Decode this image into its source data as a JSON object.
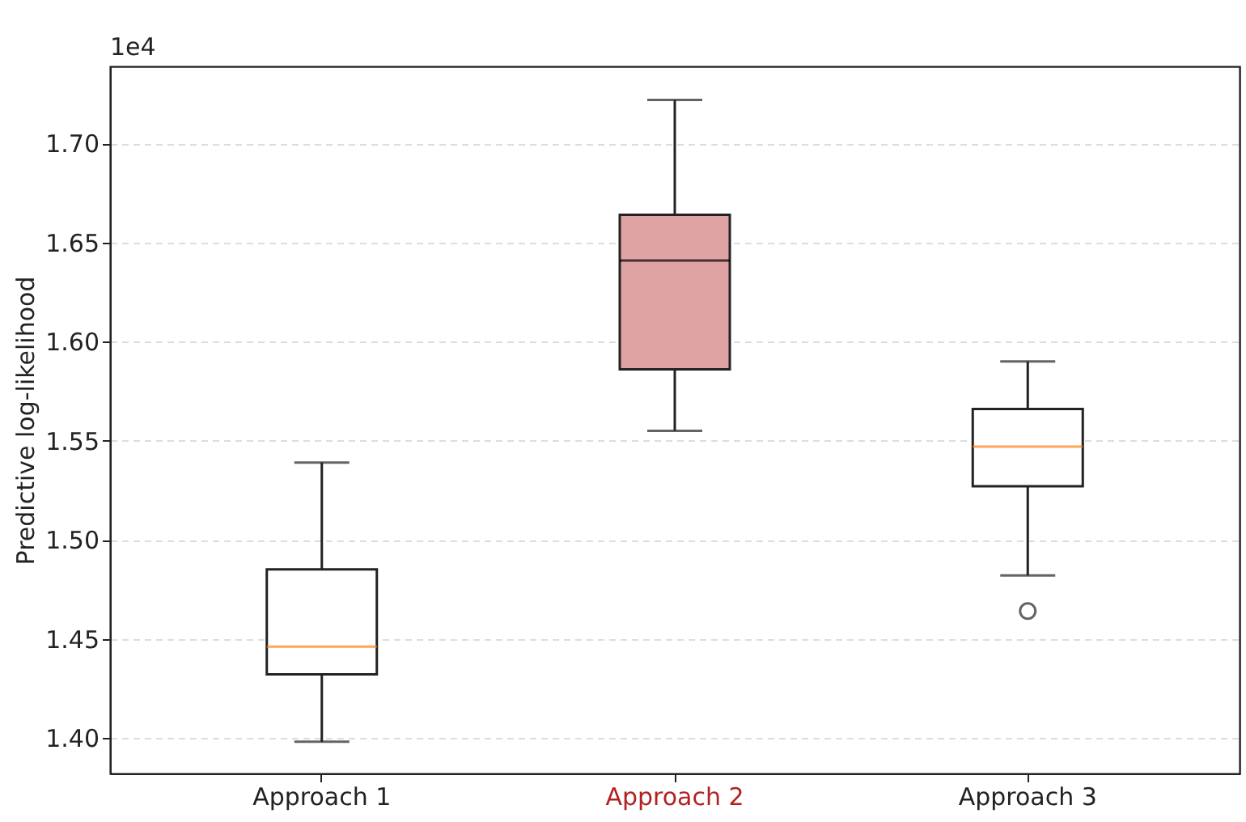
{
  "chart_data": {
    "type": "box",
    "ylabel": "Predictive log-likelihood",
    "annotations": [
      "1e4"
    ],
    "categories": [
      "Approach 1",
      "Approach 2",
      "Approach 3"
    ],
    "colors": [
      "#ffffff",
      "#e0a3a3",
      "#ffffff"
    ],
    "boxes": [
      {
        "low": 1.398,
        "q1": 1.432,
        "median": 1.446,
        "q3": 1.485,
        "high": 1.539
      },
      {
        "low": 1.555,
        "q1": 1.586,
        "median": 1.641,
        "q3": 1.664,
        "high": 1.722
      },
      {
        "low": 1.482,
        "q1": 1.527,
        "median": 1.547,
        "q3": 1.566,
        "high": 1.59,
        "outliers": [
          1.464
        ]
      }
    ],
    "ylim": [
      1.382,
      1.739
    ],
    "yticks": [
      {
        "value": 1.4,
        "label": "1.40"
      },
      1.45,
      {
        "value": 1.5,
        "label": "1.50"
      },
      1.55,
      {
        "value": 1.6,
        "label": "1.60"
      },
      1.65,
      {
        "value": 1.7,
        "label": "1.70"
      }
    ],
    "grid": "y"
  }
}
